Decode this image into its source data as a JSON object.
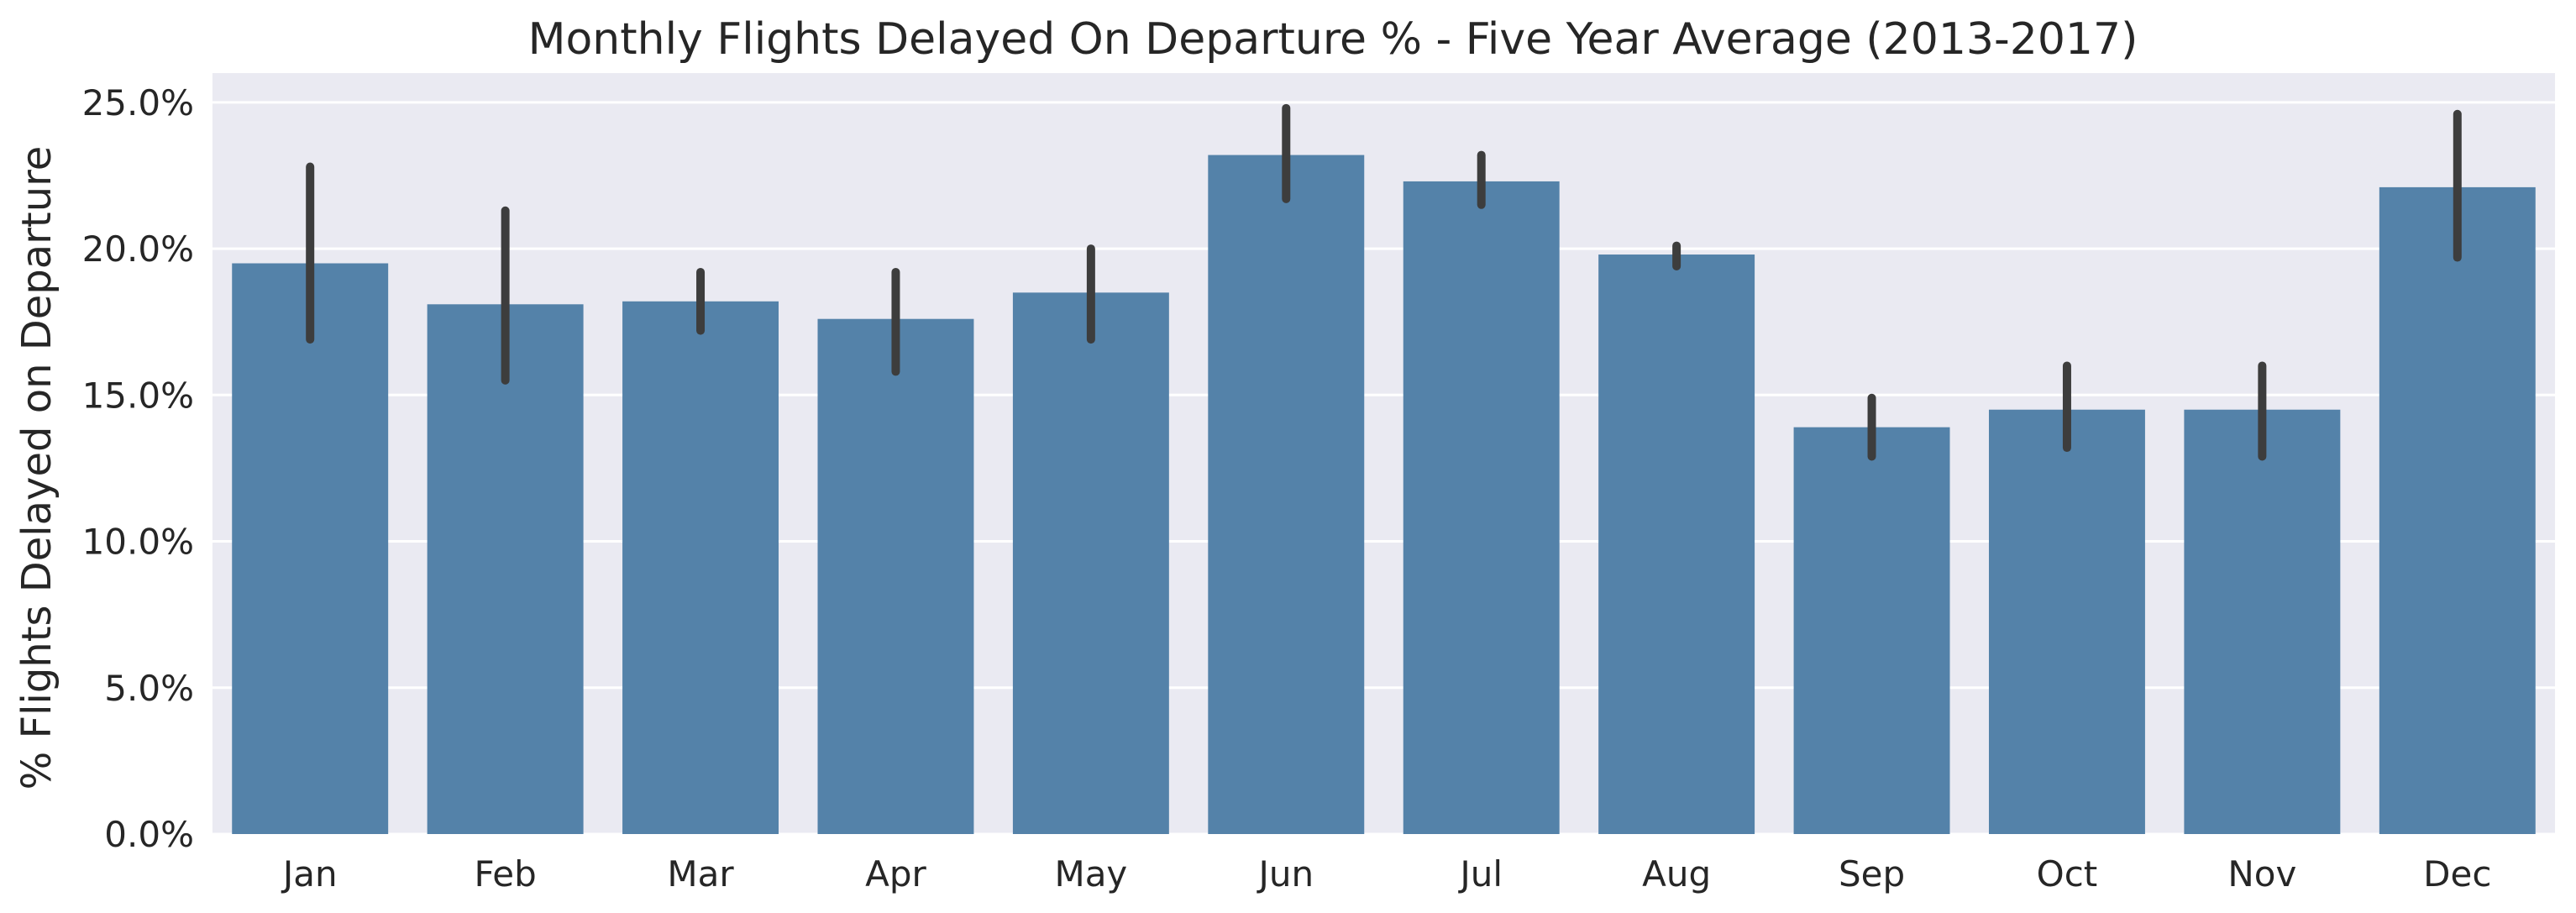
{
  "chart_data": {
    "type": "bar",
    "title": "Monthly Flights Delayed On Departure % - Five Year Average (2013-2017)",
    "xlabel": "",
    "ylabel": "% Flights Delayed on Departure",
    "categories": [
      "Jan",
      "Feb",
      "Mar",
      "Apr",
      "May",
      "Jun",
      "Jul",
      "Aug",
      "Sep",
      "Oct",
      "Nov",
      "Dec"
    ],
    "values": [
      19.5,
      18.1,
      18.2,
      17.6,
      18.5,
      23.2,
      22.3,
      19.8,
      13.9,
      14.5,
      14.5,
      22.1
    ],
    "error_low": [
      16.9,
      15.5,
      17.2,
      15.8,
      16.9,
      21.7,
      21.5,
      19.4,
      12.9,
      13.2,
      12.9,
      19.7
    ],
    "error_high": [
      22.8,
      21.3,
      19.2,
      19.2,
      20.0,
      24.8,
      23.2,
      20.1,
      14.9,
      16.0,
      16.0,
      24.6
    ],
    "ylim": [
      0,
      26
    ],
    "yticks": [
      0,
      5,
      10,
      15,
      20,
      25
    ],
    "ytick_labels": [
      "0.0%",
      "5.0%",
      "10.0%",
      "15.0%",
      "20.0%",
      "25.0%"
    ],
    "grid": true,
    "legend": "none",
    "colors": {
      "bar": "#5482a9",
      "error_bar": "#3d3d3d",
      "plot_background": "#eaeaf2",
      "grid": "#ffffff",
      "text": "#262626"
    }
  }
}
